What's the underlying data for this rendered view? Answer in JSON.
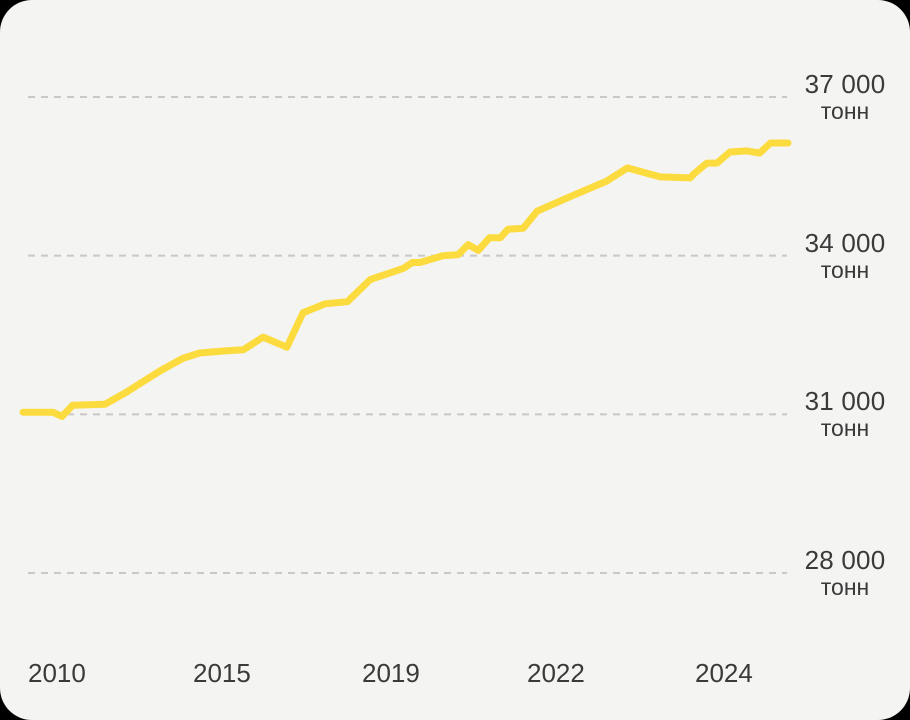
{
  "page": {
    "background": "#000000",
    "card_background": "#F4F4F2"
  },
  "chart_data": {
    "type": "line",
    "title": "",
    "unit": "тонн",
    "line_color": "#FCDB3F",
    "grid_color": "#C9C8C6",
    "text_color": "#3A3A3A",
    "grid": "horizontal-dashed",
    "legend": "none",
    "ylim": [
      28000,
      37000
    ],
    "yticks": [
      {
        "value": 37000,
        "label": "37 000",
        "unit": "тонн"
      },
      {
        "value": 34000,
        "label": "34 000",
        "unit": "тонн"
      },
      {
        "value": 31000,
        "label": "31 000",
        "unit": "тонн"
      },
      {
        "value": 28000,
        "label": "28 000",
        "unit": "тонн"
      }
    ],
    "xticks": [
      {
        "label": "2010",
        "pos": 0.007
      },
      {
        "label": "2015",
        "pos": 0.222
      },
      {
        "label": "2019",
        "pos": 0.443
      },
      {
        "label": "2022",
        "pos": 0.659
      },
      {
        "label": "2024",
        "pos": 0.878
      }
    ],
    "series": [
      {
        "color": "#FCDB3F",
        "points": [
          {
            "pos": 0.0,
            "value": 31040
          },
          {
            "pos": 0.039,
            "value": 31040
          },
          {
            "pos": 0.051,
            "value": 30960
          },
          {
            "pos": 0.065,
            "value": 31170
          },
          {
            "pos": 0.107,
            "value": 31190
          },
          {
            "pos": 0.133,
            "value": 31400
          },
          {
            "pos": 0.179,
            "value": 31820
          },
          {
            "pos": 0.209,
            "value": 32060
          },
          {
            "pos": 0.231,
            "value": 32160
          },
          {
            "pos": 0.264,
            "value": 32200
          },
          {
            "pos": 0.288,
            "value": 32220
          },
          {
            "pos": 0.314,
            "value": 32460
          },
          {
            "pos": 0.345,
            "value": 32270
          },
          {
            "pos": 0.366,
            "value": 32920
          },
          {
            "pos": 0.395,
            "value": 33090
          },
          {
            "pos": 0.424,
            "value": 33130
          },
          {
            "pos": 0.454,
            "value": 33550
          },
          {
            "pos": 0.497,
            "value": 33760
          },
          {
            "pos": 0.509,
            "value": 33870
          },
          {
            "pos": 0.519,
            "value": 33870
          },
          {
            "pos": 0.549,
            "value": 34000
          },
          {
            "pos": 0.569,
            "value": 34020
          },
          {
            "pos": 0.582,
            "value": 34210
          },
          {
            "pos": 0.595,
            "value": 34100
          },
          {
            "pos": 0.61,
            "value": 34340
          },
          {
            "pos": 0.624,
            "value": 34340
          },
          {
            "pos": 0.634,
            "value": 34500
          },
          {
            "pos": 0.654,
            "value": 34520
          },
          {
            "pos": 0.672,
            "value": 34840
          },
          {
            "pos": 0.719,
            "value": 35140
          },
          {
            "pos": 0.763,
            "value": 35410
          },
          {
            "pos": 0.79,
            "value": 35660
          },
          {
            "pos": 0.833,
            "value": 35490
          },
          {
            "pos": 0.872,
            "value": 35470
          },
          {
            "pos": 0.878,
            "value": 35560
          },
          {
            "pos": 0.894,
            "value": 35750
          },
          {
            "pos": 0.907,
            "value": 35750
          },
          {
            "pos": 0.924,
            "value": 35960
          },
          {
            "pos": 0.946,
            "value": 35980
          },
          {
            "pos": 0.963,
            "value": 35940
          },
          {
            "pos": 0.977,
            "value": 36130
          },
          {
            "pos": 1.0,
            "value": 36130
          }
        ]
      }
    ]
  }
}
